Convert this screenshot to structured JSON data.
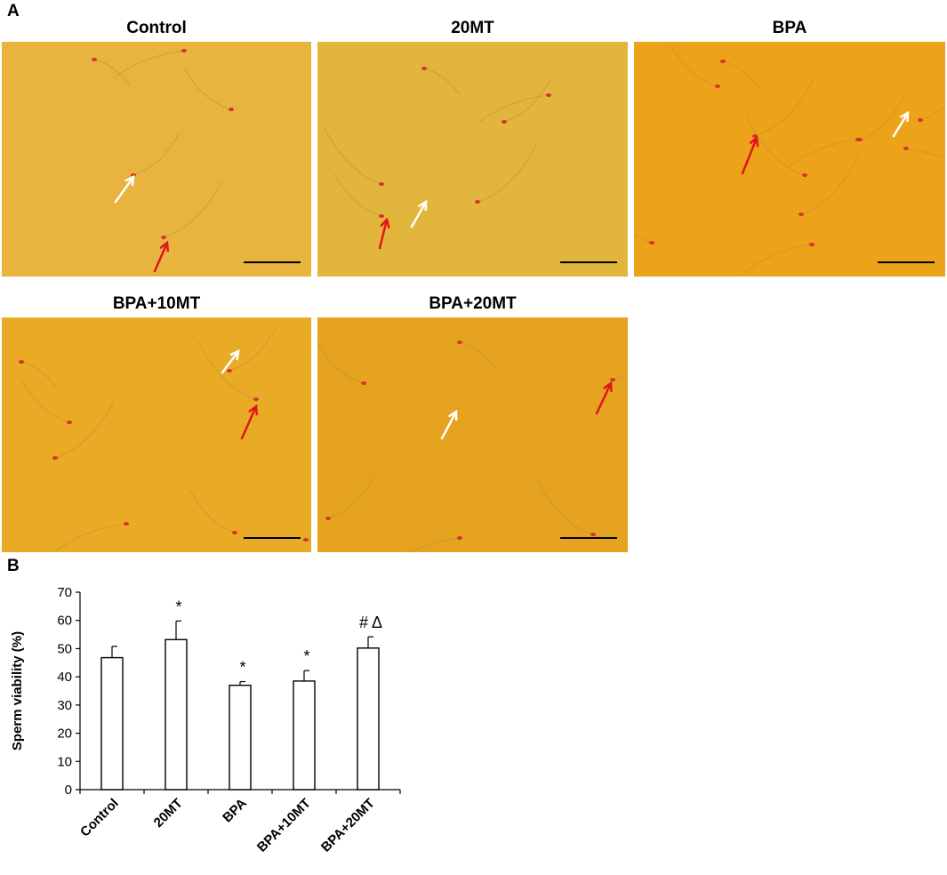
{
  "figure": {
    "panel_a_label": "A",
    "panel_b_label": "B"
  },
  "micrographs": [
    {
      "title": "Control"
    },
    {
      "title": "20MT"
    },
    {
      "title": "BPA"
    },
    {
      "title": "BPA+10MT"
    },
    {
      "title": "BPA+20MT"
    }
  ],
  "colors": {
    "background_control": "#e8b43e",
    "background_20mt": "#e2b63c",
    "background_bpa": "#eca31a",
    "background_bpa10": "#e9ab26",
    "background_bpa20": "#e6a320",
    "stained_head": "#d8322a",
    "red_arrow": "#e0161e",
    "white_arrow": "#ffffff",
    "scale_bar": "#000000"
  },
  "chart_data": {
    "type": "bar",
    "categories": [
      "Control",
      "20MT",
      "BPA",
      "BPA+10MT",
      "BPA+20MT"
    ],
    "values": [
      46.8,
      53.2,
      37.0,
      38.5,
      50.2
    ],
    "errors": [
      4.0,
      6.6,
      1.3,
      3.7,
      4.0
    ],
    "significance": [
      "",
      "*",
      "*",
      "*",
      "# Δ"
    ],
    "title": "",
    "xlabel": "",
    "ylabel": "Sperm viability (%)",
    "ylim": [
      0,
      70
    ],
    "yticks": [
      0,
      10,
      20,
      30,
      40,
      50,
      60,
      70
    ],
    "grid": false,
    "bar_fill": "#ffffff",
    "bar_edge": "#000000"
  }
}
